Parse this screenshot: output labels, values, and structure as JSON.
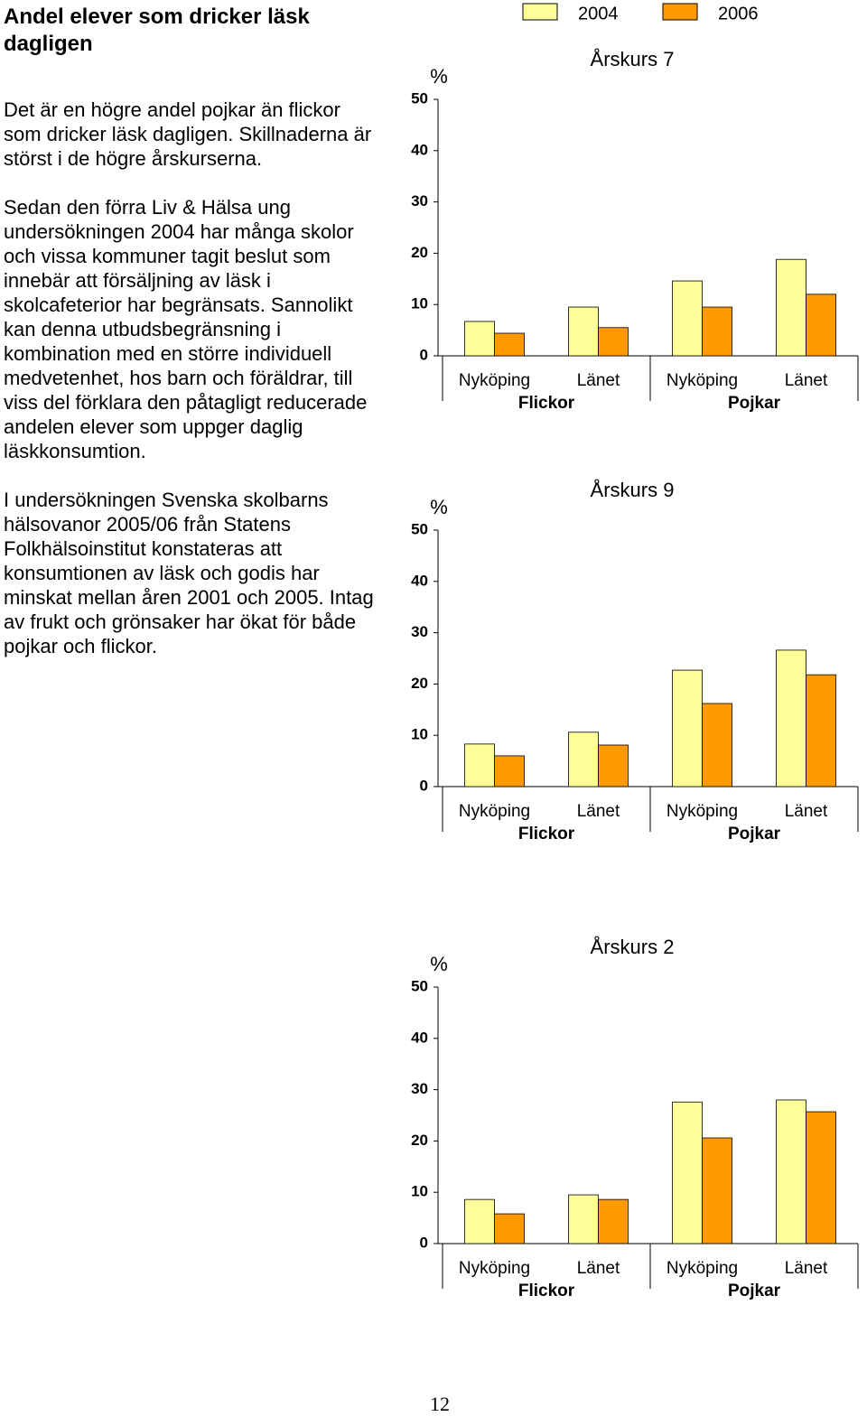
{
  "heading": "Andel elever som dricker läsk dagligen",
  "paragraphs": [
    "Det är en högre andel pojkar än flickor som dricker läsk dagligen. Skillnaderna är störst i de högre årskurserna.",
    "Sedan den förra Liv & Hälsa ung undersökningen 2004 har många skolor och vissa kommuner tagit beslut som innebär att försäljning av läsk i skolcafeterior har begränsats. Sannolikt kan denna utbudsbegränsning i kombination med en större individuell medvetenhet, hos barn och föräldrar, till viss del förklara den påtagligt reducerade andelen elever som uppger daglig läskkonsumtion.",
    "I undersökningen Svenska skolbarns hälsovanor 2005/06 från Statens Folkhälsoinstitut konstateras att konsumtionen av läsk och godis har minskat mellan åren 2001 och 2005. Intag av frukt och grönsaker har ökat för både pojkar och flickor."
  ],
  "page_number": "12",
  "chart_data": [
    {
      "type": "bar",
      "title": "Årskurs 7",
      "y_unit": "%",
      "categories": [
        "Nyköping",
        "Länet",
        "Nyköping",
        "Länet"
      ],
      "groups": [
        "Flickor",
        "Pojkar"
      ],
      "series": [
        {
          "name": "2004",
          "color": "#ffff99",
          "values": [
            6.7,
            9.5,
            14.6,
            18.8
          ]
        },
        {
          "name": "2006",
          "color": "#ff9900",
          "values": [
            4.4,
            5.5,
            9.5,
            12.0
          ]
        }
      ],
      "ylim": [
        0,
        50
      ],
      "yticks": [
        0,
        10,
        20,
        30,
        40,
        50
      ]
    },
    {
      "type": "bar",
      "title": "Årskurs 9",
      "y_unit": "%",
      "categories": [
        "Nyköping",
        "Länet",
        "Nyköping",
        "Länet"
      ],
      "groups": [
        "Flickor",
        "Pojkar"
      ],
      "series": [
        {
          "name": "2004",
          "color": "#ffff99",
          "values": [
            8.3,
            10.6,
            22.7,
            26.6
          ]
        },
        {
          "name": "2006",
          "color": "#ff9900",
          "values": [
            6.0,
            8.1,
            16.2,
            21.8
          ]
        }
      ],
      "ylim": [
        0,
        50
      ],
      "yticks": [
        0,
        10,
        20,
        30,
        40,
        50
      ]
    },
    {
      "type": "bar",
      "title": "Årskurs 2",
      "y_unit": "%",
      "categories": [
        "Nyköping",
        "Länet",
        "Nyköping",
        "Länet"
      ],
      "groups": [
        "Flickor",
        "Pojkar"
      ],
      "series": [
        {
          "name": "2004",
          "color": "#ffff99",
          "values": [
            8.6,
            9.5,
            27.6,
            28.0
          ]
        },
        {
          "name": "2006",
          "color": "#ff9900",
          "values": [
            5.8,
            8.6,
            20.6,
            25.7
          ]
        }
      ],
      "ylim": [
        0,
        50
      ],
      "yticks": [
        0,
        10,
        20,
        30,
        40,
        50
      ]
    }
  ]
}
